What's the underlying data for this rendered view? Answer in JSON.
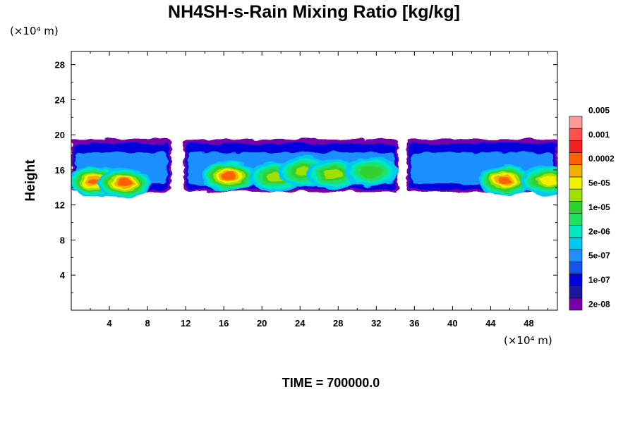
{
  "chart_data": {
    "type": "heatmap",
    "title": "NH4SH-s-Rain Mixing Ratio [kg/kg]",
    "ylabel": "Height",
    "y_unit_label": "(×10⁴ m)",
    "x_unit_label": "(×10⁴ m)",
    "xlim": [
      0,
      51
    ],
    "ylim": [
      0,
      29.5
    ],
    "x_ticks": [
      4,
      8,
      12,
      16,
      20,
      24,
      28,
      32,
      36,
      40,
      44,
      48
    ],
    "x_tick_labels": [
      "4",
      "8",
      "12",
      "16",
      "20",
      "24",
      "28",
      "32",
      "36",
      "40",
      "44",
      "48"
    ],
    "y_ticks": [
      4,
      8,
      12,
      16,
      20,
      24,
      28
    ],
    "y_tick_labels": [
      "4",
      "8",
      "12",
      "16",
      "20",
      "24",
      "28"
    ],
    "colorbar": {
      "colors": [
        "#7700aa",
        "#1a1a9e",
        "#0000dd",
        "#1155ee",
        "#1f8fff",
        "#00c8f0",
        "#00e8c0",
        "#20e060",
        "#30d030",
        "#a0e000",
        "#f0f000",
        "#f0b000",
        "#ff6000",
        "#f02020",
        "#ff5050",
        "#ff9898"
      ],
      "labels": [
        "2e-08",
        "1e-07",
        "5e-07",
        "2e-06",
        "1e-05",
        "5e-05",
        "0.0002",
        "0.001",
        "0.005"
      ]
    },
    "cloud_band": {
      "bottom_height": 13.5,
      "top_height": 19.5,
      "gaps_x": [
        [
          10.5,
          11.8
        ],
        [
          34.3,
          35.2
        ]
      ],
      "cores": [
        {
          "x": 2.5,
          "y": 14.7,
          "level": 12
        },
        {
          "x": 5.5,
          "y": 14.5,
          "level": 12
        },
        {
          "x": 16.5,
          "y": 15.3,
          "level": 12
        },
        {
          "x": 21.5,
          "y": 15.2,
          "level": 9
        },
        {
          "x": 24.5,
          "y": 15.8,
          "level": 9
        },
        {
          "x": 27.5,
          "y": 15.5,
          "level": 9
        },
        {
          "x": 31.5,
          "y": 15.8,
          "level": 8
        },
        {
          "x": 45.5,
          "y": 14.8,
          "level": 12
        },
        {
          "x": 50.0,
          "y": 14.8,
          "level": 10
        }
      ]
    }
  },
  "footer": {
    "time_label": "TIME = 700000.0"
  }
}
